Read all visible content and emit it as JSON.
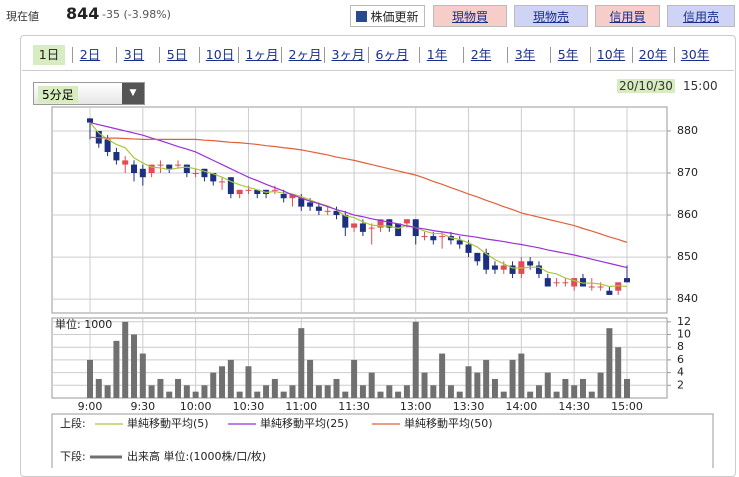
{
  "header": {
    "price_label": "現在値",
    "price": "844",
    "change": "-35 (-3.98%)",
    "buttons": [
      "株価更新",
      "現物買",
      "現物売",
      "信用買",
      "信用売"
    ]
  },
  "tabs": [
    "1日",
    "2日",
    "3日",
    "5日",
    "10日",
    "1ヶ月",
    "2ヶ月",
    "3ヶ月",
    "6ヶ月",
    "1年",
    "2年",
    "3年",
    "5年",
    "10年",
    "20年",
    "30年"
  ],
  "interval": "5分足",
  "date": "20/10/30",
  "time": "15:00",
  "chart_data": [
    {
      "type": "candlestick",
      "legend_label": "上段:",
      "up_color": "#e34b55",
      "down_color": "#1c2f80",
      "grid": true,
      "ylim": [
        836.7,
        885.7
      ],
      "yticks": [
        840,
        850,
        860,
        870,
        880
      ],
      "categories": [
        "9:00",
        null,
        null,
        null,
        null,
        null,
        "9:30",
        null,
        null,
        null,
        null,
        null,
        "10:00",
        null,
        null,
        null,
        null,
        null,
        "10:30",
        null,
        null,
        null,
        null,
        null,
        "11:00",
        null,
        null,
        null,
        null,
        null,
        "11:30",
        null,
        null,
        null,
        null,
        null,
        null,
        "13:00",
        null,
        null,
        null,
        null,
        null,
        "13:30",
        null,
        null,
        null,
        null,
        null,
        "14:00",
        null,
        null,
        null,
        null,
        null,
        "14:30",
        null,
        null,
        null,
        null,
        null,
        "15:00"
      ],
      "candles": [
        [
          883,
          883,
          878,
          882
        ],
        [
          880,
          880,
          876,
          877
        ],
        [
          878,
          879,
          874,
          875
        ],
        [
          875,
          876,
          872,
          873
        ],
        [
          872,
          874,
          870,
          873
        ],
        [
          872,
          873,
          868,
          870
        ],
        [
          871,
          872,
          867,
          869
        ],
        [
          870,
          872,
          869,
          872
        ],
        [
          872,
          873,
          870,
          872
        ],
        [
          872,
          872,
          870,
          871
        ],
        [
          872,
          873,
          871,
          872
        ],
        [
          872,
          872,
          869,
          870
        ],
        [
          870,
          871,
          869,
          870
        ],
        [
          871,
          871,
          868,
          869
        ],
        [
          870,
          870,
          867,
          868
        ],
        [
          868,
          869,
          866,
          868
        ],
        [
          869,
          869,
          864,
          865
        ],
        [
          865,
          866,
          864,
          866
        ],
        [
          866,
          867,
          865,
          866
        ],
        [
          866,
          866,
          864,
          865
        ],
        [
          866,
          866,
          864,
          865
        ],
        [
          866,
          867,
          865,
          866
        ],
        [
          865,
          866,
          863,
          864
        ],
        [
          864,
          865,
          862,
          865
        ],
        [
          864,
          865,
          861,
          862
        ],
        [
          863,
          864,
          861,
          862
        ],
        [
          862,
          863,
          860,
          861
        ],
        [
          861,
          862,
          860,
          861
        ],
        [
          861,
          862,
          859,
          860
        ],
        [
          860,
          861,
          855,
          857
        ],
        [
          857,
          858,
          856,
          858
        ],
        [
          858,
          859,
          855,
          856
        ],
        [
          857,
          858,
          853,
          857
        ],
        [
          857,
          859,
          856,
          859
        ],
        [
          859,
          859,
          856,
          857
        ],
        [
          858,
          858,
          855,
          855
        ],
        [
          858,
          859,
          857,
          859
        ],
        [
          859,
          859,
          853,
          855
        ],
        [
          855,
          856,
          854,
          855
        ],
        [
          855,
          856,
          853,
          854
        ],
        [
          855,
          856,
          852,
          855
        ],
        [
          855,
          856,
          853,
          854
        ],
        [
          854,
          855,
          852,
          853
        ],
        [
          853,
          854,
          850,
          851
        ],
        [
          851,
          851,
          848,
          849
        ],
        [
          851,
          852,
          846,
          847
        ],
        [
          848,
          849,
          846,
          847
        ],
        [
          847,
          849,
          846,
          848
        ],
        [
          848,
          849,
          845,
          846
        ],
        [
          846,
          850,
          845,
          849
        ],
        [
          849,
          850,
          847,
          848
        ],
        [
          848,
          849,
          845,
          846
        ],
        [
          845,
          846,
          843,
          843
        ],
        [
          844,
          845,
          843,
          844
        ],
        [
          844,
          845,
          843,
          844
        ],
        [
          843,
          845,
          842,
          845
        ],
        [
          845,
          846,
          843,
          843
        ],
        [
          843,
          845,
          842,
          843
        ],
        [
          843,
          844,
          842,
          843
        ],
        [
          842,
          843,
          841,
          841
        ],
        [
          842,
          844,
          841,
          844
        ],
        [
          845,
          848,
          844,
          844
        ]
      ],
      "series": [
        {
          "name": "単純移動平均(5)",
          "color": "#a8c838",
          "values": [
            882,
            879.5,
            878,
            876.8,
            876,
            873.6,
            872.4,
            871.4,
            871.2,
            870.8,
            871.2,
            871.4,
            871,
            870.4,
            869.8,
            869,
            868,
            867.2,
            866.6,
            866,
            865.4,
            865.6,
            865.2,
            865,
            864.4,
            863.6,
            862.8,
            862.2,
            861.2,
            859.8,
            859.4,
            858.4,
            857.6,
            857.4,
            857.4,
            856.8,
            857.6,
            857,
            856.2,
            855.6,
            855.6,
            854.6,
            854.2,
            853.4,
            852.4,
            850.8,
            849.4,
            848.4,
            847.4,
            847.4,
            847.6,
            847.6,
            846.4,
            846,
            845,
            844.4,
            843.8,
            843.8,
            843.6,
            843,
            843.2,
            843
          ]
        },
        {
          "name": "単純移動平均(25)",
          "color": "#9b30d9",
          "values": [
            882,
            881.5,
            881,
            880.5,
            880,
            879.5,
            879,
            878.3,
            877.7,
            877,
            876.3,
            875.7,
            875,
            874,
            873,
            872,
            871,
            870,
            869,
            868.2,
            867.3,
            866.5,
            865.7,
            864.8,
            864,
            863.3,
            862.7,
            862,
            861.3,
            860.7,
            860,
            859.6,
            859.1,
            858.7,
            858.3,
            857.9,
            857.4,
            857,
            856.7,
            856.3,
            856,
            855.7,
            855.3,
            855,
            854.7,
            854.3,
            854,
            853.7,
            853.3,
            853,
            852.6,
            852.2,
            851.7,
            851.3,
            850.9,
            850.5,
            850,
            849.5,
            849,
            848.5,
            848,
            847.5
          ]
        },
        {
          "name": "単純移動平均(50)",
          "color": "#e0603a",
          "values": [
            878.5,
            878.4,
            878.3,
            878.3,
            878.2,
            878.1,
            878,
            878,
            878,
            878,
            878,
            878,
            878,
            877.8,
            877.7,
            877.5,
            877.3,
            877.2,
            877,
            876.8,
            876.5,
            876.3,
            876,
            875.8,
            875.5,
            875.1,
            874.7,
            874.3,
            873.8,
            873.4,
            873,
            872.5,
            872,
            871.5,
            871,
            870.5,
            870,
            869.5,
            868.8,
            868,
            867.3,
            866.5,
            865.8,
            865,
            864.3,
            863.5,
            862.8,
            862,
            861.3,
            860.5,
            860,
            859.5,
            859,
            858.5,
            858,
            857.5,
            856.8,
            856.2,
            855.5,
            854.8,
            854.2,
            853.5
          ]
        }
      ]
    },
    {
      "type": "bar",
      "legend_label": "下段:",
      "unit_label": "単位: 1000",
      "grid": true,
      "ylim": [
        0,
        12.6
      ],
      "yticks": [
        2,
        4,
        6,
        8,
        10,
        12
      ],
      "series": [
        {
          "name": "出来高 単位:(1000株/口/枚)",
          "color": "#707070",
          "values": [
            6,
            3,
            2,
            9,
            12,
            10,
            7,
            2,
            3,
            1,
            3,
            2,
            1,
            2,
            4,
            5,
            6,
            1,
            5,
            1,
            2,
            3,
            1,
            2,
            11,
            6,
            2,
            2,
            3,
            1,
            6,
            2,
            4,
            1,
            2,
            1,
            2,
            12,
            4,
            2,
            7,
            2,
            1,
            5,
            4,
            6,
            3,
            1,
            6,
            7,
            1,
            2,
            4,
            1,
            3,
            2,
            3,
            1,
            4,
            11,
            8,
            3
          ]
        }
      ]
    }
  ]
}
